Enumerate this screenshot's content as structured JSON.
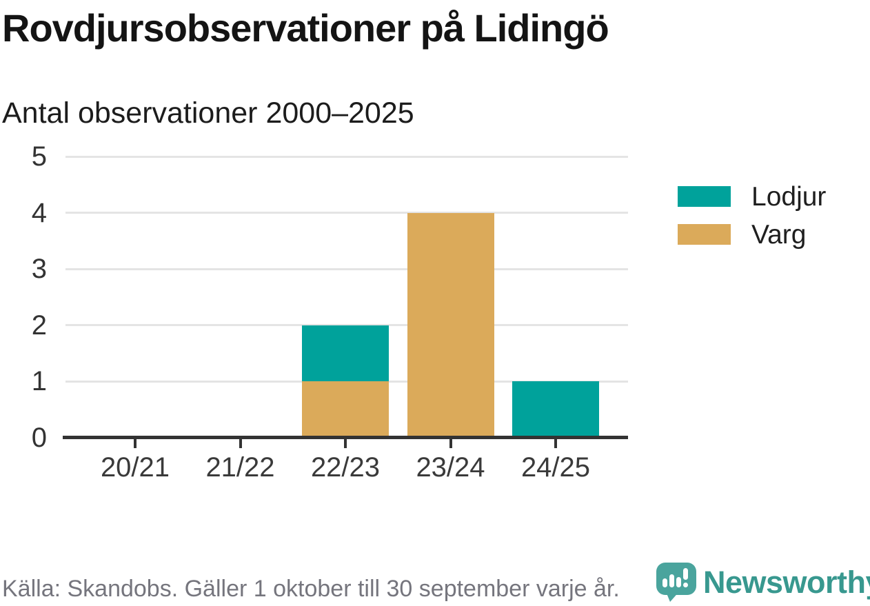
{
  "header": {
    "title": "Rovdjursobservationer på Lidingö",
    "subtitle": "Antal observationer 2000–2025"
  },
  "chart_data": {
    "type": "bar",
    "stacked": true,
    "title": "Rovdjursobservationer på Lidingö",
    "subtitle": "Antal observationer 2000–2025",
    "categories": [
      "20/21",
      "21/22",
      "22/23",
      "23/24",
      "24/25"
    ],
    "series": [
      {
        "name": "Lodjur",
        "color": "#00a29b",
        "values": [
          0,
          0,
          1,
          0,
          1
        ]
      },
      {
        "name": "Varg",
        "color": "#dbaa5a",
        "values": [
          0,
          0,
          1,
          4,
          0
        ]
      }
    ],
    "stack_order_bottom_to_top": [
      "Varg",
      "Lodjur"
    ],
    "totals_per_category": [
      0,
      0,
      2,
      4,
      1
    ],
    "ylim": [
      0,
      5
    ],
    "yticks": [
      0,
      1,
      2,
      3,
      4,
      5
    ],
    "xlabel": "",
    "ylabel": "",
    "grid": true,
    "grid_color": "#e4e4e4",
    "axis_color": "#333333",
    "legend_position": "right"
  },
  "footer": {
    "source": "Källa: Skandobs. Gäller 1 oktober till 30 september varje år.",
    "logo_text": "Newsworthy"
  },
  "brand": {
    "icon_teal": "#4aa49d",
    "logo_text_teal": "#38988f",
    "icon_bars_white": "#ffffff"
  }
}
